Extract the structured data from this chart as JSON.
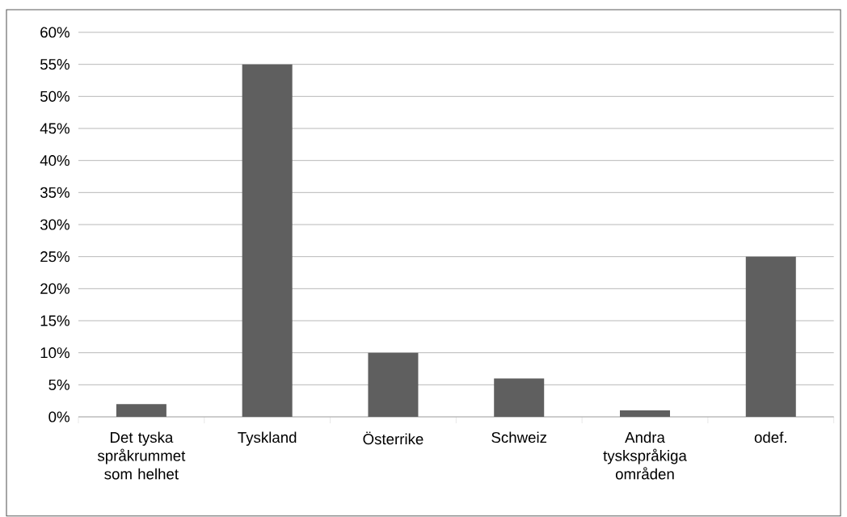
{
  "chart_data": {
    "type": "bar",
    "categories": [
      "Det tyska språkrummet som helhet",
      "Tyskland",
      "Österrike",
      "Schweiz",
      "Andra tyskspråkiga områden",
      "odef."
    ],
    "values": [
      2,
      55,
      10,
      6,
      1,
      25
    ],
    "color": "#5f5f5f",
    "ylim": [
      0,
      60
    ],
    "yticks": [
      {
        "value": 0,
        "label": "0%"
      },
      {
        "value": 5,
        "label": "5%"
      },
      {
        "value": 10,
        "label": "10%"
      },
      {
        "value": 15,
        "label": "15%"
      },
      {
        "value": 20,
        "label": "20%"
      },
      {
        "value": 25,
        "label": "25%"
      },
      {
        "value": 30,
        "label": "30%"
      },
      {
        "value": 35,
        "label": "35%"
      },
      {
        "value": 40,
        "label": "40%"
      },
      {
        "value": 45,
        "label": "45%"
      },
      {
        "value": 50,
        "label": "50%"
      },
      {
        "value": 55,
        "label": "55%"
      },
      {
        "value": 60,
        "label": "60%"
      }
    ],
    "grid": "y"
  }
}
